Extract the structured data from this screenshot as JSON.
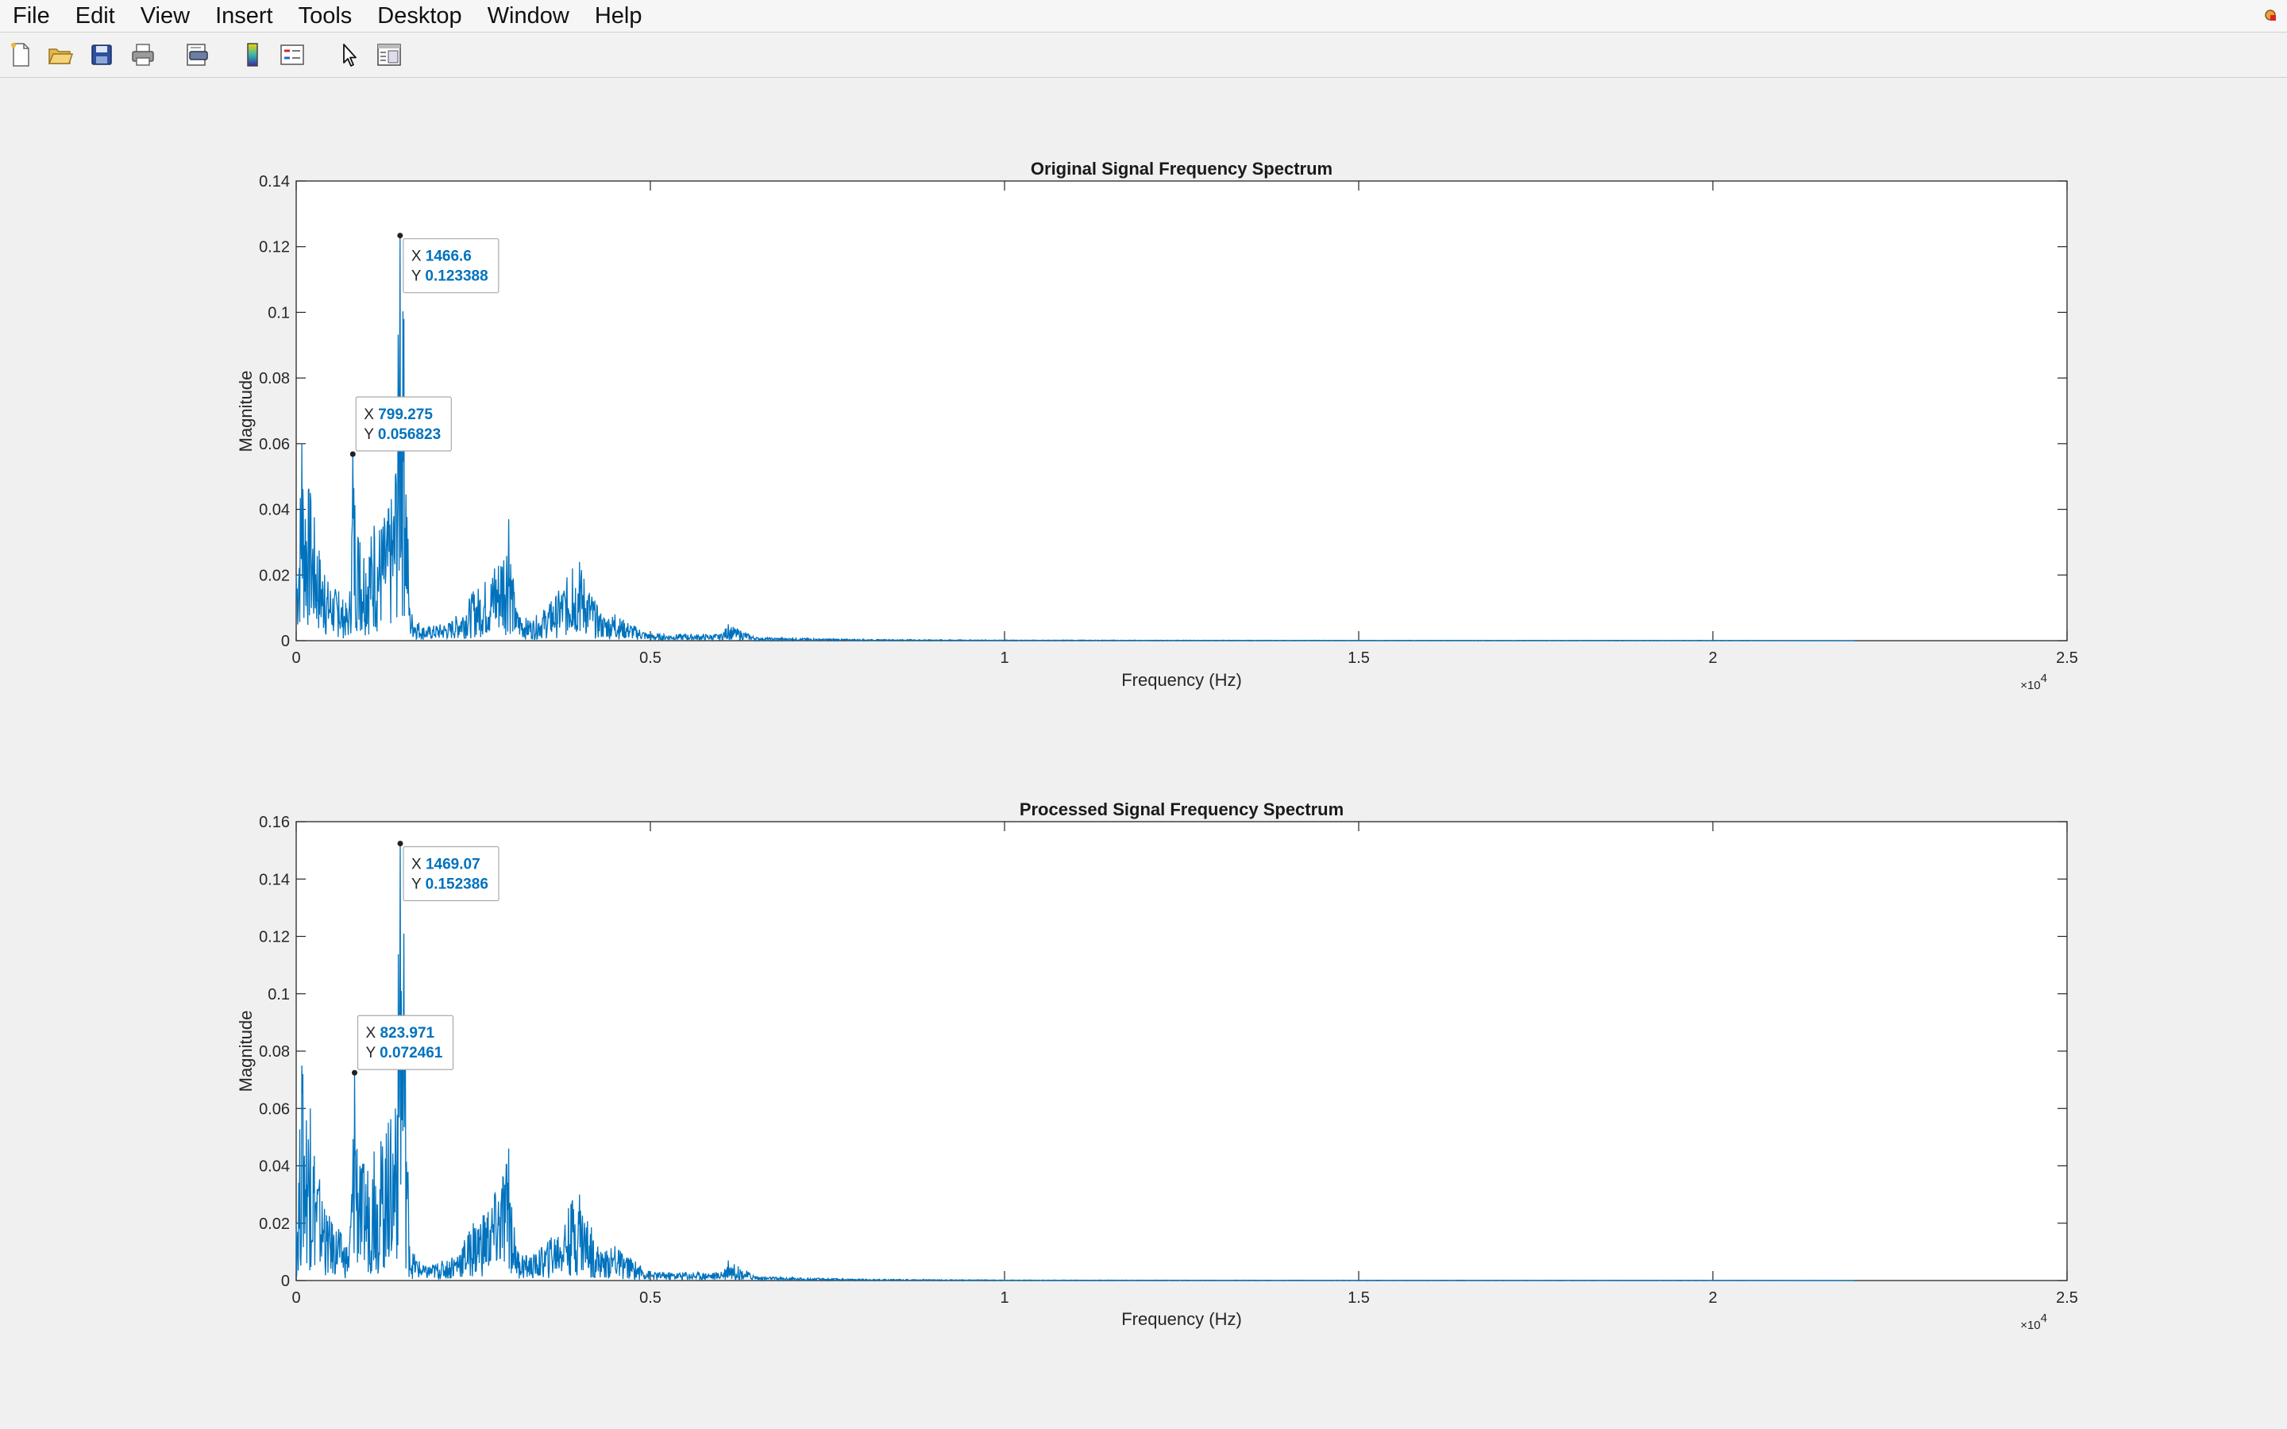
{
  "menu": {
    "items": [
      "File",
      "Edit",
      "View",
      "Insert",
      "Tools",
      "Desktop",
      "Window",
      "Help"
    ]
  },
  "toolbar": {
    "icons": [
      "new-figure-icon",
      "open-folder-icon",
      "save-icon",
      "print-icon",
      "print-preview-icon",
      "colorbar-icon",
      "legend-icon",
      "pointer-icon",
      "property-editor-icon"
    ]
  },
  "colors": {
    "line": "#0072bd",
    "datatip_value": "#0072bd",
    "background": "#f0f0f0",
    "axes_bg": "#ffffff"
  },
  "chart_data": [
    {
      "type": "line",
      "title": "Original Signal Frequency Spectrum",
      "xlabel": "Frequency (Hz)",
      "ylabel": "Magnitude",
      "xlim": [
        0,
        25000
      ],
      "ylim": [
        0,
        0.14
      ],
      "x_exponent_label": "×10",
      "x_exponent": "4",
      "xticks": [
        0,
        0.5,
        1,
        1.5,
        2,
        2.5
      ],
      "yticks": [
        0,
        0.02,
        0.04,
        0.06,
        0.08,
        0.1,
        0.12,
        0.14
      ],
      "xtick_labels": [
        "0",
        "0.5",
        "1",
        "1.5",
        "2",
        "2.5"
      ],
      "ytick_labels": [
        "0",
        "0.02",
        "0.04",
        "0.06",
        "0.08",
        "0.1",
        "0.12",
        "0.14"
      ],
      "grid": false,
      "series": [
        {
          "x": [
            0,
            80,
            200,
            400,
            600,
            750,
            799.275,
            900,
            1100,
            1300,
            1400,
            1466.6,
            1520,
            1600,
            1800,
            2200,
            2500,
            2800,
            3000,
            3100,
            3300,
            3600,
            3900,
            4000,
            4300,
            4500,
            5000,
            5500,
            6000,
            6100,
            6500,
            7000,
            8000,
            10000,
            15000,
            20000,
            22000
          ],
          "y": [
            0.02,
            0.06,
            0.045,
            0.02,
            0.015,
            0.01,
            0.056823,
            0.03,
            0.035,
            0.04,
            0.05,
            0.123388,
            0.098,
            0.01,
            0.004,
            0.006,
            0.015,
            0.022,
            0.037,
            0.01,
            0.006,
            0.012,
            0.022,
            0.024,
            0.008,
            0.008,
            0.002,
            0.002,
            0.002,
            0.005,
            0.001,
            0.0008,
            0.0004,
            0.0002,
            0.0001,
            0.0001,
            0
          ]
        }
      ],
      "datatips": [
        {
          "x_label": "X",
          "y_label": "Y",
          "x": "1466.6",
          "y": "0.123388"
        },
        {
          "x_label": "X",
          "y_label": "Y",
          "x": "799.275",
          "y": "0.056823"
        }
      ]
    },
    {
      "type": "line",
      "title": "Processed Signal Frequency Spectrum",
      "xlabel": "Frequency (Hz)",
      "ylabel": "Magnitude",
      "xlim": [
        0,
        25000
      ],
      "ylim": [
        0,
        0.16
      ],
      "x_exponent_label": "×10",
      "x_exponent": "4",
      "xticks": [
        0,
        0.5,
        1,
        1.5,
        2,
        2.5
      ],
      "yticks": [
        0,
        0.02,
        0.04,
        0.06,
        0.08,
        0.1,
        0.12,
        0.14,
        0.16
      ],
      "xtick_labels": [
        "0",
        "0.5",
        "1",
        "1.5",
        "2",
        "2.5"
      ],
      "ytick_labels": [
        "0",
        "0.02",
        "0.04",
        "0.06",
        "0.08",
        "0.1",
        "0.12",
        "0.14",
        "0.16"
      ],
      "grid": false,
      "series": [
        {
          "x": [
            0,
            80,
            200,
            400,
            600,
            750,
            823.971,
            900,
            1100,
            1300,
            1400,
            1469.07,
            1520,
            1600,
            1800,
            2200,
            2500,
            2800,
            3000,
            3100,
            3300,
            3600,
            3900,
            4000,
            4300,
            4500,
            5000,
            5500,
            6000,
            6100,
            6500,
            7000,
            8000,
            10000,
            15000,
            20000,
            22000
          ],
          "y": [
            0.02,
            0.075,
            0.06,
            0.025,
            0.018,
            0.012,
            0.072461,
            0.04,
            0.045,
            0.055,
            0.06,
            0.152386,
            0.121,
            0.012,
            0.005,
            0.008,
            0.02,
            0.03,
            0.046,
            0.012,
            0.008,
            0.015,
            0.028,
            0.03,
            0.01,
            0.012,
            0.003,
            0.003,
            0.003,
            0.007,
            0.0015,
            0.001,
            0.0005,
            0.0002,
            0.0001,
            0.0001,
            0
          ]
        }
      ],
      "datatips": [
        {
          "x_label": "X",
          "y_label": "Y",
          "x": "1469.07",
          "y": "0.152386"
        },
        {
          "x_label": "X",
          "y_label": "Y",
          "x": "823.971",
          "y": "0.072461"
        }
      ]
    }
  ]
}
